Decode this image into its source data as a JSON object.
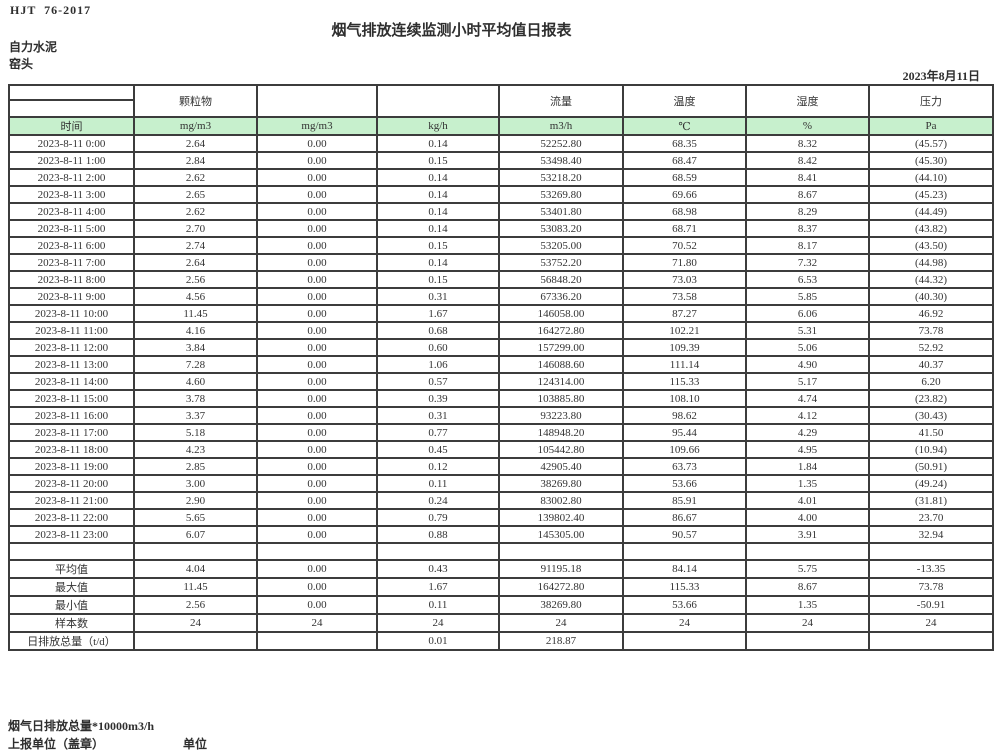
{
  "meta": {
    "standard": "HJT  76-2017",
    "title": "烟气排放连续监测小时平均值日报表",
    "company": "自力水泥",
    "station": "窑头",
    "date": "2023年8月11日"
  },
  "table": {
    "group_headers": [
      "",
      "颗粒物",
      "",
      "",
      "流量",
      "温度",
      "湿度",
      "压力"
    ],
    "unit_row": [
      "时间",
      "mg/m3",
      "mg/m3",
      "kg/h",
      "m3/h",
      "℃",
      "%",
      "Pa"
    ],
    "rows": [
      [
        "2023-8-11 0:00",
        "2.64",
        "0.00",
        "0.14",
        "52252.80",
        "68.35",
        "8.32",
        "(45.57)"
      ],
      [
        "2023-8-11 1:00",
        "2.84",
        "0.00",
        "0.15",
        "53498.40",
        "68.47",
        "8.42",
        "(45.30)"
      ],
      [
        "2023-8-11 2:00",
        "2.62",
        "0.00",
        "0.14",
        "53218.20",
        "68.59",
        "8.41",
        "(44.10)"
      ],
      [
        "2023-8-11 3:00",
        "2.65",
        "0.00",
        "0.14",
        "53269.80",
        "69.66",
        "8.67",
        "(45.23)"
      ],
      [
        "2023-8-11 4:00",
        "2.62",
        "0.00",
        "0.14",
        "53401.80",
        "68.98",
        "8.29",
        "(44.49)"
      ],
      [
        "2023-8-11 5:00",
        "2.70",
        "0.00",
        "0.14",
        "53083.20",
        "68.71",
        "8.37",
        "(43.82)"
      ],
      [
        "2023-8-11 6:00",
        "2.74",
        "0.00",
        "0.15",
        "53205.00",
        "70.52",
        "8.17",
        "(43.50)"
      ],
      [
        "2023-8-11 7:00",
        "2.64",
        "0.00",
        "0.14",
        "53752.20",
        "71.80",
        "7.32",
        "(44.98)"
      ],
      [
        "2023-8-11 8:00",
        "2.56",
        "0.00",
        "0.15",
        "56848.20",
        "73.03",
        "6.53",
        "(44.32)"
      ],
      [
        "2023-8-11 9:00",
        "4.56",
        "0.00",
        "0.31",
        "67336.20",
        "73.58",
        "5.85",
        "(40.30)"
      ],
      [
        "2023-8-11 10:00",
        "11.45",
        "0.00",
        "1.67",
        "146058.00",
        "87.27",
        "6.06",
        "46.92"
      ],
      [
        "2023-8-11 11:00",
        "4.16",
        "0.00",
        "0.68",
        "164272.80",
        "102.21",
        "5.31",
        "73.78"
      ],
      [
        "2023-8-11 12:00",
        "3.84",
        "0.00",
        "0.60",
        "157299.00",
        "109.39",
        "5.06",
        "52.92"
      ],
      [
        "2023-8-11 13:00",
        "7.28",
        "0.00",
        "1.06",
        "146088.60",
        "111.14",
        "4.90",
        "40.37"
      ],
      [
        "2023-8-11 14:00",
        "4.60",
        "0.00",
        "0.57",
        "124314.00",
        "115.33",
        "5.17",
        "6.20"
      ],
      [
        "2023-8-11 15:00",
        "3.78",
        "0.00",
        "0.39",
        "103885.80",
        "108.10",
        "4.74",
        "(23.82)"
      ],
      [
        "2023-8-11 16:00",
        "3.37",
        "0.00",
        "0.31",
        "93223.80",
        "98.62",
        "4.12",
        "(30.43)"
      ],
      [
        "2023-8-11 17:00",
        "5.18",
        "0.00",
        "0.77",
        "148948.20",
        "95.44",
        "4.29",
        "41.50"
      ],
      [
        "2023-8-11 18:00",
        "4.23",
        "0.00",
        "0.45",
        "105442.80",
        "109.66",
        "4.95",
        "(10.94)"
      ],
      [
        "2023-8-11 19:00",
        "2.85",
        "0.00",
        "0.12",
        "42905.40",
        "63.73",
        "1.84",
        "(50.91)"
      ],
      [
        "2023-8-11 20:00",
        "3.00",
        "0.00",
        "0.11",
        "38269.80",
        "53.66",
        "1.35",
        "(49.24)"
      ],
      [
        "2023-8-11 21:00",
        "2.90",
        "0.00",
        "0.24",
        "83002.80",
        "85.91",
        "4.01",
        "(31.81)"
      ],
      [
        "2023-8-11 22:00",
        "5.65",
        "0.00",
        "0.79",
        "139802.40",
        "86.67",
        "4.00",
        "23.70"
      ],
      [
        "2023-8-11 23:00",
        "6.07",
        "0.00",
        "0.88",
        "145305.00",
        "90.57",
        "3.91",
        "32.94"
      ]
    ],
    "empty_row": [
      "",
      "",
      "",
      "",
      "",
      "",
      "",
      ""
    ],
    "summary_rows": [
      [
        "平均值",
        "4.04",
        "0.00",
        "0.43",
        "91195.18",
        "84.14",
        "5.75",
        "-13.35"
      ],
      [
        "最大值",
        "11.45",
        "0.00",
        "1.67",
        "164272.80",
        "115.33",
        "8.67",
        "73.78"
      ],
      [
        "最小值",
        "2.56",
        "0.00",
        "0.11",
        "38269.80",
        "53.66",
        "1.35",
        "-50.91"
      ],
      [
        "样本数",
        "24",
        "24",
        "24",
        "24",
        "24",
        "24",
        "24"
      ],
      [
        "日排放总量（t/d）",
        "",
        "",
        "0.01",
        "218.87",
        "",
        "",
        ""
      ]
    ]
  },
  "footer": {
    "note": "烟气日排放总量*10000m3/h",
    "report_unit_label": "上报单位（盖章）",
    "unit_label": "单位"
  },
  "colors": {
    "header_fill": "#c7f0cd",
    "negative_red": "#e03131",
    "grid_line": "#3c3c3c"
  }
}
